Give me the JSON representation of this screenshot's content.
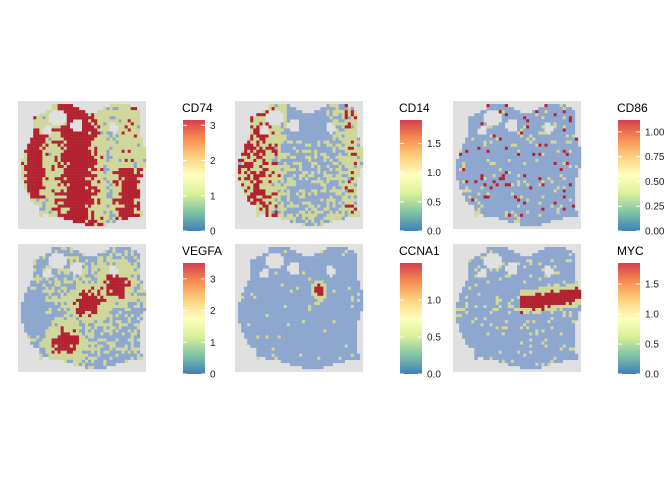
{
  "figure": {
    "colorscale": [
      "#3e7fb7",
      "#7fc3a6",
      "#d9ef9b",
      "#ffffbf",
      "#fdd27f",
      "#f88d52",
      "#d53e4f"
    ],
    "panel_background": "#e0e0e0",
    "tissue_colors": {
      "low": "#8ea7cf",
      "mid": "#cfd79a",
      "high": "#b32230"
    },
    "tick_color": "#ffffff"
  },
  "chart_data": [
    {
      "type": "heatmap",
      "subtype": "spatial-feature-plot",
      "gene": "CD74",
      "colorbar": {
        "title": "CD74",
        "min": 0,
        "max": 3.15,
        "ticks": [
          0,
          1,
          2,
          3
        ],
        "tick_labels": [
          "0",
          "1",
          "2",
          "3"
        ]
      },
      "pattern": "broad"
    },
    {
      "type": "heatmap",
      "subtype": "spatial-feature-plot",
      "gene": "CD14",
      "colorbar": {
        "title": "CD14",
        "min": 0,
        "max": 1.9,
        "ticks": [
          0.0,
          0.5,
          1.0,
          1.5
        ],
        "tick_labels": [
          "0.0",
          "0.5",
          "1.0",
          "1.5"
        ]
      },
      "pattern": "left"
    },
    {
      "type": "heatmap",
      "subtype": "spatial-feature-plot",
      "gene": "CD86",
      "colorbar": {
        "title": "CD86",
        "min": 0,
        "max": 1.12,
        "ticks": [
          0.0,
          0.25,
          0.5,
          0.75,
          1.0
        ],
        "tick_labels": [
          "0.00",
          "0.25",
          "0.50",
          "0.75",
          "1.00"
        ]
      },
      "pattern": "sparse"
    },
    {
      "type": "heatmap",
      "subtype": "spatial-feature-plot",
      "gene": "VEGFA",
      "colorbar": {
        "title": "VEGFA",
        "min": 0,
        "max": 3.5,
        "ticks": [
          0,
          1,
          2,
          3
        ],
        "tick_labels": [
          "0",
          "1",
          "2",
          "3"
        ]
      },
      "pattern": "patchy"
    },
    {
      "type": "heatmap",
      "subtype": "spatial-feature-plot",
      "gene": "CCNA1",
      "colorbar": {
        "title": "CCNA1",
        "min": 0,
        "max": 1.5,
        "ticks": [
          0.0,
          0.5,
          1.0
        ],
        "tick_labels": [
          "0.0",
          "0.5",
          "1.0"
        ]
      },
      "pattern": "focal"
    },
    {
      "type": "heatmap",
      "subtype": "spatial-feature-plot",
      "gene": "MYC",
      "colorbar": {
        "title": "MYC",
        "min": 0,
        "max": 1.85,
        "ticks": [
          0.0,
          0.5,
          1.0,
          1.5
        ],
        "tick_labels": [
          "0.0",
          "0.5",
          "1.0",
          "1.5"
        ]
      },
      "pattern": "band"
    }
  ]
}
